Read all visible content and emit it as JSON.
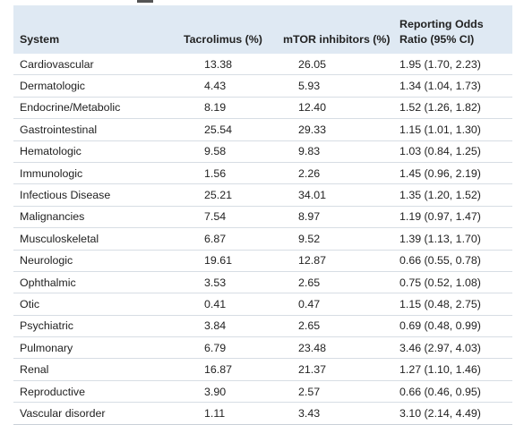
{
  "table": {
    "headers": {
      "system": "System",
      "tacrolimus": "Tacrolimus (%)",
      "mtor": "mTOR inhibitors (%)",
      "ror_line1": "Reporting Odds",
      "ror_line2": "Ratio (95% CI)"
    },
    "rows": [
      {
        "system": "Cardiovascular",
        "tacrolimus": "13.38",
        "mtor": "26.05",
        "ror": "1.95 (1.70, 2.23)"
      },
      {
        "system": "Dermatologic",
        "tacrolimus": "4.43",
        "mtor": "5.93",
        "ror": "1.34 (1.04, 1.73)"
      },
      {
        "system": "Endocrine/Metabolic",
        "tacrolimus": "8.19",
        "mtor": "12.40",
        "ror": "1.52 (1.26, 1.82)"
      },
      {
        "system": "Gastrointestinal",
        "tacrolimus": "25.54",
        "mtor": "29.33",
        "ror": "1.15 (1.01, 1.30)"
      },
      {
        "system": "Hematologic",
        "tacrolimus": "9.58",
        "mtor": "9.83",
        "ror": "1.03 (0.84, 1.25)"
      },
      {
        "system": "Immunologic",
        "tacrolimus": "1.56",
        "mtor": "2.26",
        "ror": "1.45 (0.96, 2.19)"
      },
      {
        "system": "Infectious Disease",
        "tacrolimus": "25.21",
        "mtor": "34.01",
        "ror": "1.35 (1.20, 1.52)"
      },
      {
        "system": "Malignancies",
        "tacrolimus": "7.54",
        "mtor": "8.97",
        "ror": "1.19 (0.97, 1.47)"
      },
      {
        "system": "Musculoskeletal",
        "tacrolimus": "6.87",
        "mtor": "9.52",
        "ror": "1.39 (1.13, 1.70)"
      },
      {
        "system": "Neurologic",
        "tacrolimus": "19.61",
        "mtor": "12.87",
        "ror": "0.66 (0.55, 0.78)"
      },
      {
        "system": "Ophthalmic",
        "tacrolimus": "3.53",
        "mtor": "2.65",
        "ror": "0.75 (0.52, 1.08)"
      },
      {
        "system": "Otic",
        "tacrolimus": "0.41",
        "mtor": "0.47",
        "ror": "1.15 (0.48, 2.75)"
      },
      {
        "system": "Psychiatric",
        "tacrolimus": "3.84",
        "mtor": "2.65",
        "ror": "0.69 (0.48, 0.99)"
      },
      {
        "system": "Pulmonary",
        "tacrolimus": "6.79",
        "mtor": "23.48",
        "ror": "3.46 (2.97, 4.03)"
      },
      {
        "system": "Renal",
        "tacrolimus": "16.87",
        "mtor": "21.37",
        "ror": "1.27 (1.10, 1.46)"
      },
      {
        "system": "Reproductive",
        "tacrolimus": "3.90",
        "mtor": "2.57",
        "ror": "0.66 (0.46, 0.95)"
      },
      {
        "system": "Vascular disorder",
        "tacrolimus": "1.11",
        "mtor": "3.43",
        "ror": "3.10 (2.14, 4.49)"
      }
    ]
  },
  "colors": {
    "header_bg": "#dfe9f3",
    "row_divider": "#d7dde4",
    "text": "#222222"
  }
}
